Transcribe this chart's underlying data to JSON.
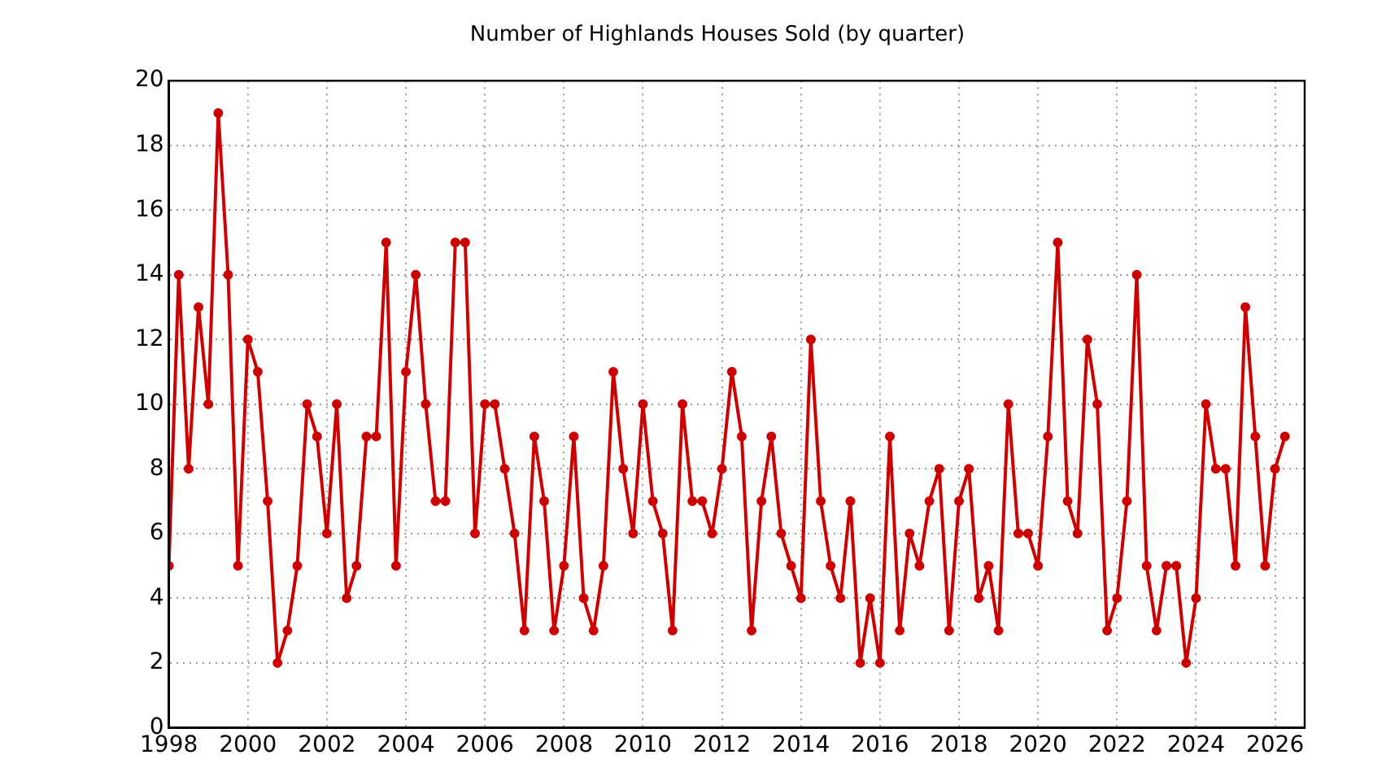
{
  "chart_data": {
    "type": "line",
    "title": "Number of Highlands Houses Sold (by quarter)",
    "x": [
      1998,
      1998.25,
      1998.5,
      1998.75,
      1999,
      1999.25,
      1999.5,
      1999.75,
      2000,
      2000.25,
      2000.5,
      2000.75,
      2001,
      2001.25,
      2001.5,
      2001.75,
      2002,
      2002.25,
      2002.5,
      2002.75,
      2003,
      2003.25,
      2003.5,
      2003.75,
      2004,
      2004.25,
      2004.5,
      2004.75,
      2005,
      2005.25,
      2005.5,
      2005.75,
      2006,
      2006.25,
      2006.5,
      2006.75,
      2007,
      2007.25,
      2007.5,
      2007.75,
      2008,
      2008.25,
      2008.5,
      2008.75,
      2009,
      2009.25,
      2009.5,
      2009.75,
      2010,
      2010.25,
      2010.5,
      2010.75,
      2011,
      2011.25,
      2011.5,
      2011.75,
      2012,
      2012.25,
      2012.5,
      2012.75,
      2013,
      2013.25,
      2013.5,
      2013.75,
      2014,
      2014.25,
      2014.5,
      2014.75,
      2015,
      2015.25,
      2015.5,
      2015.75,
      2016,
      2016.25,
      2016.5,
      2016.75,
      2017,
      2017.25,
      2017.5,
      2017.75,
      2018,
      2018.25,
      2018.5,
      2018.75,
      2019,
      2019.25,
      2019.5,
      2019.75,
      2020,
      2020.25,
      2020.5,
      2020.75,
      2021,
      2021.25,
      2021.5,
      2021.75,
      2022,
      2022.25,
      2022.5,
      2022.75,
      2023,
      2023.25,
      2023.5,
      2023.75,
      2024,
      2024.25,
      2024.5,
      2024.75,
      2025,
      2025.25,
      2025.5,
      2025.75,
      2026,
      2026.25
    ],
    "series": [
      {
        "color": "#cc0000",
        "values": [
          5,
          14,
          8,
          13,
          10,
          19,
          14,
          5,
          12,
          11,
          7,
          2,
          3,
          5,
          10,
          9,
          6,
          10,
          4,
          5,
          9,
          9,
          15,
          5,
          11,
          14,
          10,
          7,
          7,
          15,
          15,
          6,
          10,
          10,
          8,
          6,
          3,
          9,
          7,
          3,
          5,
          9,
          4,
          3,
          5,
          11,
          8,
          6,
          10,
          7,
          6,
          3,
          10,
          7,
          7,
          6,
          8,
          11,
          9,
          3,
          7,
          9,
          6,
          5,
          4,
          12,
          7,
          5,
          4,
          7,
          2,
          4,
          2,
          9,
          3,
          6,
          5,
          7,
          8,
          3,
          7,
          8,
          4,
          5,
          3,
          10,
          6,
          6,
          5,
          9,
          15,
          7,
          6,
          12,
          10,
          3,
          4,
          7,
          14,
          5,
          3,
          5,
          5,
          2,
          4,
          10,
          8,
          8,
          5,
          13,
          9,
          5,
          8,
          9
        ]
      }
    ],
    "xlim": [
      1998,
      2026.75
    ],
    "xticks": [
      1998,
      2000,
      2002,
      2004,
      2006,
      2008,
      2010,
      2012,
      2014,
      2016,
      2018,
      2020,
      2022,
      2024,
      2026
    ],
    "ylim": [
      0,
      20
    ],
    "yticks": [
      0,
      2,
      4,
      6,
      8,
      10,
      12,
      14,
      16,
      18,
      20
    ],
    "grid": true,
    "marker": "circle",
    "line_style": "solid",
    "legend": false
  }
}
